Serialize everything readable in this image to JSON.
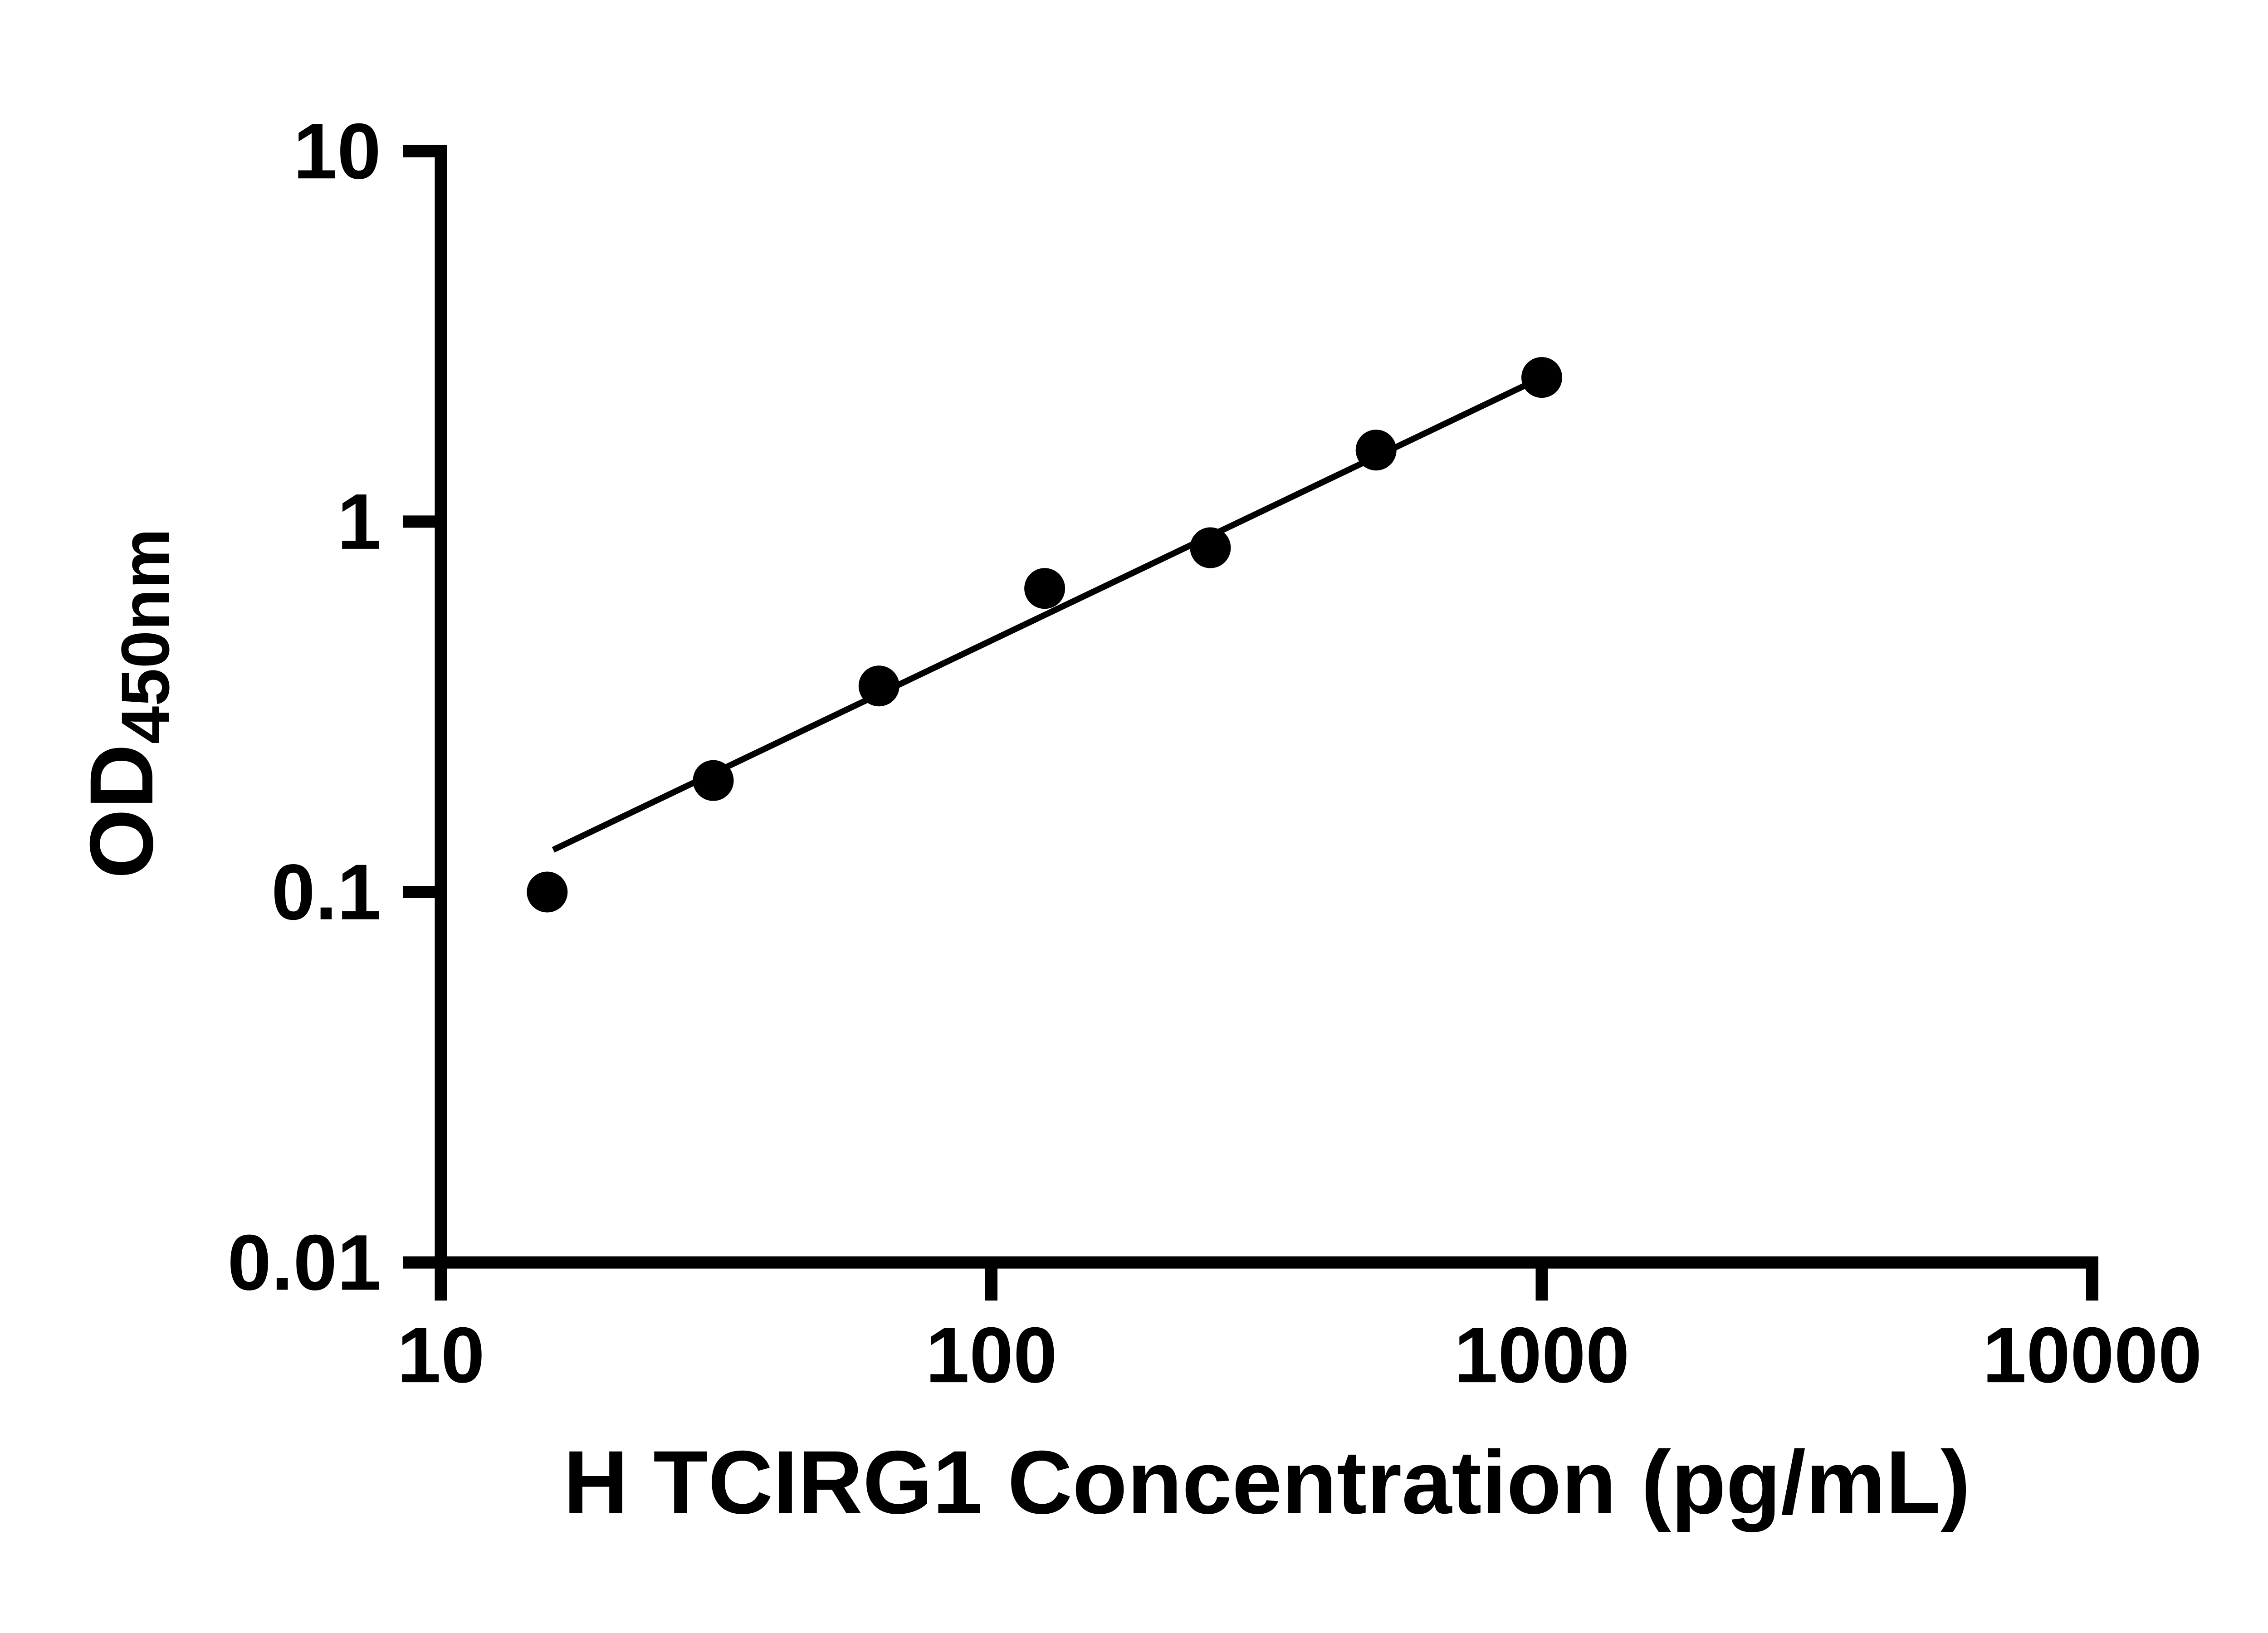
{
  "chart_data": {
    "type": "scatter",
    "title": "",
    "xlabel": "H TCIRG1 Concentration (pg/mL)",
    "ylabel_main": "OD",
    "ylabel_sub": "450nm",
    "x_scale": "log",
    "y_scale": "log",
    "xlim": [
      10,
      10000
    ],
    "ylim": [
      0.01,
      10
    ],
    "x_ticks": [
      "10",
      "100",
      "1000",
      "10000"
    ],
    "x_tick_values": [
      10,
      100,
      1000,
      10000
    ],
    "y_ticks": [
      "0.01",
      "0.1",
      "1",
      "10"
    ],
    "y_tick_values": [
      0.01,
      0.1,
      1,
      10
    ],
    "grid": false,
    "legend": false,
    "series": [
      {
        "x": [
          15.6,
          31.25,
          62.5,
          125,
          250,
          500,
          1000
        ],
        "y": [
          0.1,
          0.2,
          0.36,
          0.66,
          0.85,
          1.56,
          2.45
        ]
      }
    ],
    "trend_line": {
      "x1": 16,
      "y1": 0.13,
      "x2": 1000,
      "y2": 2.45
    },
    "marker_color": "#000000",
    "marker_radius": 15,
    "line_color": "#000000",
    "axis_color": "#000000",
    "background": "#ffffff"
  }
}
